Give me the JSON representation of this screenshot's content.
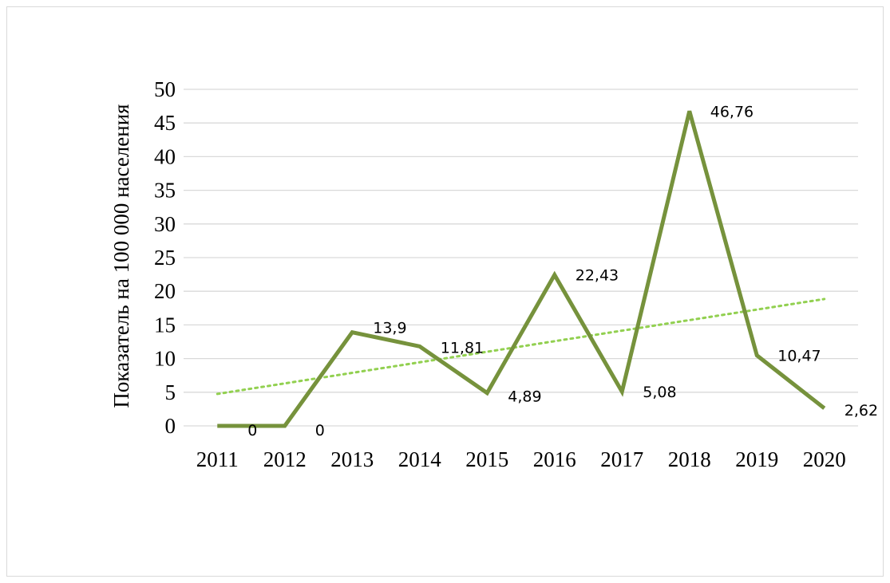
{
  "chart_data": {
    "type": "line",
    "title": "",
    "xlabel": "",
    "ylabel": "Показатель на 100 000 населения",
    "categories": [
      "2011",
      "2012",
      "2013",
      "2014",
      "2015",
      "2016",
      "2017",
      "2018",
      "2019",
      "2020"
    ],
    "series": [
      {
        "values": [
          0,
          0,
          13.9,
          11.81,
          4.89,
          22.43,
          5.08,
          46.76,
          10.47,
          2.62
        ],
        "data_labels": [
          "0",
          "0",
          "13,9",
          "11,81",
          "4,89",
          "22,43",
          "5,08",
          "46,76",
          "10,47",
          "2,62"
        ],
        "color": "#76923c"
      }
    ],
    "trendline": {
      "type": "linear",
      "color": "#92d050",
      "style": "dotted"
    },
    "ylim": [
      0,
      50
    ],
    "yticks": [
      "0",
      "5",
      "10",
      "15",
      "20",
      "25",
      "30",
      "35",
      "40",
      "45",
      "50"
    ],
    "grid": true,
    "gridline_color": "#d9d9d9",
    "legend": "none"
  }
}
